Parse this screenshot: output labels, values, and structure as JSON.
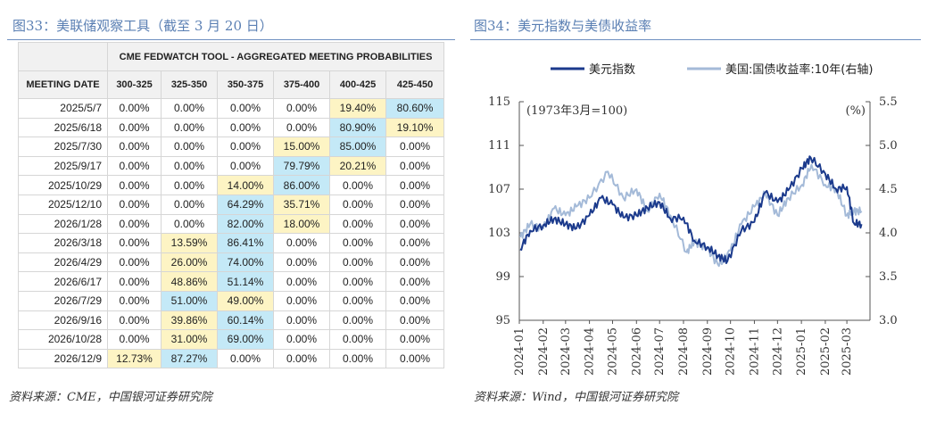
{
  "left_panel": {
    "title": "图33：美联储观察工具（截至 3 月 20 日）",
    "source": "资料来源：CME，中国银河证券研究院"
  },
  "right_panel": {
    "title": "图34：美元指数与美债收益率",
    "source": "资料来源：Wind，中国银河证券研究院"
  },
  "chart_data": [
    {
      "type": "table",
      "title": "CME FEDWATCH TOOL - AGGREGATED MEETING PROBABILITIES",
      "columns": [
        "MEETING DATE",
        "300-325",
        "325-350",
        "350-375",
        "375-400",
        "400-425",
        "425-450"
      ],
      "rows": [
        [
          "2025/5/7",
          "0.00%",
          "0.00%",
          "0.00%",
          "0.00%",
          "19.40%",
          "80.60%"
        ],
        [
          "2025/6/18",
          "0.00%",
          "0.00%",
          "0.00%",
          "0.00%",
          "80.90%",
          "19.10%"
        ],
        [
          "2025/7/30",
          "0.00%",
          "0.00%",
          "0.00%",
          "15.00%",
          "85.00%",
          "0.00%"
        ],
        [
          "2025/9/17",
          "0.00%",
          "0.00%",
          "0.00%",
          "79.79%",
          "20.21%",
          "0.00%"
        ],
        [
          "2025/10/29",
          "0.00%",
          "0.00%",
          "14.00%",
          "86.00%",
          "0.00%",
          "0.00%"
        ],
        [
          "2025/12/10",
          "0.00%",
          "0.00%",
          "64.29%",
          "35.71%",
          "0.00%",
          "0.00%"
        ],
        [
          "2026/1/28",
          "0.00%",
          "0.00%",
          "82.00%",
          "18.00%",
          "0.00%",
          "0.00%"
        ],
        [
          "2026/3/18",
          "0.00%",
          "13.59%",
          "86.41%",
          "0.00%",
          "0.00%",
          "0.00%"
        ],
        [
          "2026/4/29",
          "0.00%",
          "26.00%",
          "74.00%",
          "0.00%",
          "0.00%",
          "0.00%"
        ],
        [
          "2026/6/17",
          "0.00%",
          "48.86%",
          "51.14%",
          "0.00%",
          "0.00%",
          "0.00%"
        ],
        [
          "2026/7/29",
          "0.00%",
          "51.00%",
          "49.00%",
          "0.00%",
          "0.00%",
          "0.00%"
        ],
        [
          "2026/9/16",
          "0.00%",
          "39.86%",
          "60.14%",
          "0.00%",
          "0.00%",
          "0.00%"
        ],
        [
          "2026/10/28",
          "0.00%",
          "31.00%",
          "69.00%",
          "0.00%",
          "0.00%",
          "0.00%"
        ],
        [
          "2026/12/9",
          "12.73%",
          "87.27%",
          "0.00%",
          "0.00%",
          "0.00%",
          "0.00%"
        ]
      ],
      "highlight_colors": {
        "minor": "#fdf4c4",
        "major": "#c4e9f7"
      }
    },
    {
      "type": "line",
      "annotation_left": "(1973年3月=100)",
      "annotation_right": "(%)",
      "x_ticks": [
        "2024-01",
        "2024-02",
        "2024-03",
        "2024-04",
        "2024-05",
        "2024-06",
        "2024-07",
        "2024-08",
        "2024-09",
        "2024-10",
        "2024-11",
        "2024-12",
        "2025-01",
        "2025-02",
        "2025-03"
      ],
      "y_left": {
        "lim": [
          95,
          115
        ],
        "ticks": [
          "95",
          "99",
          "103",
          "107",
          "111",
          "115"
        ]
      },
      "y_right": {
        "lim": [
          3.0,
          5.5
        ],
        "ticks": [
          "3.0",
          "3.5",
          "4.0",
          "4.5",
          "5.0",
          "5.5"
        ]
      },
      "legend_position": "top",
      "series": [
        {
          "name": "美元指数",
          "axis": "left",
          "color": "#1b3a8c",
          "x": [
            "2024-01-02",
            "2024-01-15",
            "2024-02-01",
            "2024-02-15",
            "2024-03-01",
            "2024-03-15",
            "2024-04-01",
            "2024-04-16",
            "2024-05-01",
            "2024-05-15",
            "2024-06-01",
            "2024-06-15",
            "2024-07-01",
            "2024-07-15",
            "2024-08-01",
            "2024-08-15",
            "2024-09-01",
            "2024-09-15",
            "2024-09-27",
            "2024-10-15",
            "2024-11-01",
            "2024-11-15",
            "2024-12-01",
            "2024-12-15",
            "2025-01-02",
            "2025-01-13",
            "2025-02-01",
            "2025-02-15",
            "2025-03-01",
            "2025-03-10",
            "2025-03-20"
          ],
          "values": [
            101.5,
            103.2,
            103.7,
            104.3,
            103.8,
            103.4,
            104.6,
            106.2,
            105.6,
            104.4,
            104.6,
            105.3,
            105.8,
            104.3,
            104.4,
            102.3,
            101.7,
            100.9,
            100.4,
            103.2,
            104.0,
            106.7,
            105.8,
            106.9,
            108.9,
            109.9,
            108.4,
            107.0,
            107.2,
            103.9,
            103.8
          ]
        },
        {
          "name": "美国:国债收益率:10年(右轴)",
          "axis": "right",
          "color": "#a4bad8",
          "x": [
            "2024-01-02",
            "2024-01-15",
            "2024-02-01",
            "2024-02-15",
            "2024-03-01",
            "2024-03-15",
            "2024-04-01",
            "2024-04-25",
            "2024-05-15",
            "2024-06-01",
            "2024-06-15",
            "2024-07-01",
            "2024-07-15",
            "2024-08-05",
            "2024-08-15",
            "2024-09-01",
            "2024-09-16",
            "2024-10-01",
            "2024-10-15",
            "2024-11-01",
            "2024-11-15",
            "2024-12-01",
            "2024-12-15",
            "2025-01-02",
            "2025-01-14",
            "2025-02-01",
            "2025-02-15",
            "2025-03-01",
            "2025-03-10",
            "2025-03-20"
          ],
          "values": [
            3.95,
            4.1,
            4.05,
            4.28,
            4.2,
            4.3,
            4.4,
            4.7,
            4.4,
            4.5,
            4.25,
            4.45,
            4.2,
            3.78,
            3.9,
            3.82,
            3.62,
            3.8,
            4.1,
            4.3,
            4.45,
            4.2,
            4.4,
            4.55,
            4.78,
            4.55,
            4.5,
            4.2,
            4.25,
            4.25
          ]
        }
      ]
    }
  ]
}
